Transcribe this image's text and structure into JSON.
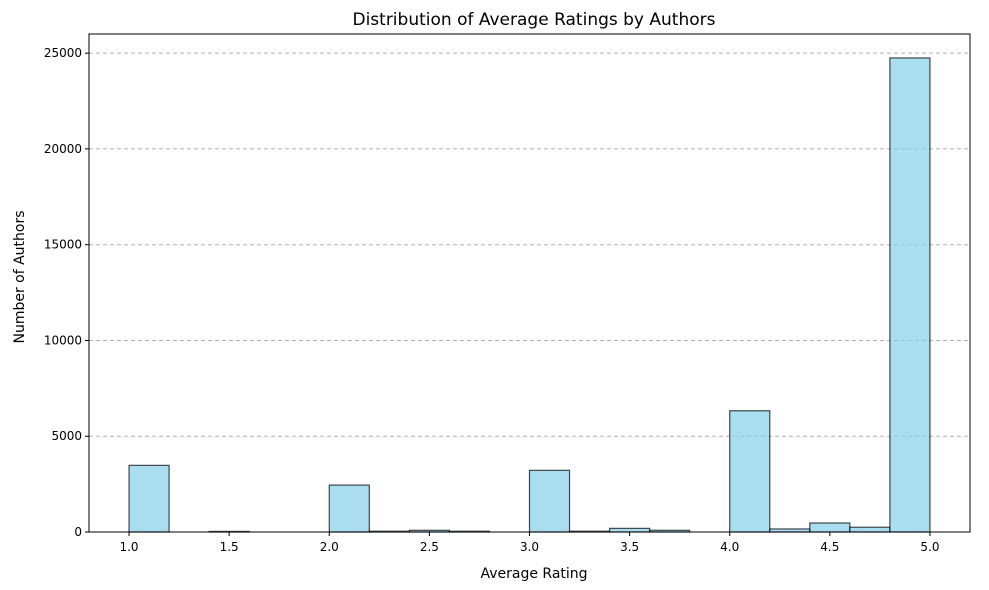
{
  "chart_data": {
    "type": "bar",
    "title": "Distribution of Average Ratings by Authors",
    "xlabel": "Average Rating",
    "ylabel": "Number of Authors",
    "xlim": [
      0.8,
      5.2
    ],
    "ylim": [
      0,
      26000
    ],
    "xticks": [
      "1.0",
      "1.5",
      "2.0",
      "2.5",
      "3.0",
      "3.5",
      "4.0",
      "4.5",
      "5.0"
    ],
    "yticks": [
      "0",
      "5000",
      "10000",
      "15000",
      "20000",
      "25000"
    ],
    "grid": "y-dashed",
    "bins": [
      {
        "start": 1.0,
        "end": 1.2,
        "count": 3480
      },
      {
        "start": 1.2,
        "end": 1.4,
        "count": 0
      },
      {
        "start": 1.4,
        "end": 1.6,
        "count": 30
      },
      {
        "start": 1.6,
        "end": 1.8,
        "count": 0
      },
      {
        "start": 1.8,
        "end": 2.0,
        "count": 0
      },
      {
        "start": 2.0,
        "end": 2.2,
        "count": 2450
      },
      {
        "start": 2.2,
        "end": 2.4,
        "count": 40
      },
      {
        "start": 2.4,
        "end": 2.6,
        "count": 90
      },
      {
        "start": 2.6,
        "end": 2.8,
        "count": 40
      },
      {
        "start": 2.8,
        "end": 3.0,
        "count": 0
      },
      {
        "start": 3.0,
        "end": 3.2,
        "count": 3220
      },
      {
        "start": 3.2,
        "end": 3.4,
        "count": 40
      },
      {
        "start": 3.4,
        "end": 3.6,
        "count": 190
      },
      {
        "start": 3.6,
        "end": 3.8,
        "count": 90
      },
      {
        "start": 3.8,
        "end": 4.0,
        "count": 0
      },
      {
        "start": 4.0,
        "end": 4.2,
        "count": 6330
      },
      {
        "start": 4.2,
        "end": 4.4,
        "count": 160
      },
      {
        "start": 4.4,
        "end": 4.6,
        "count": 470
      },
      {
        "start": 4.6,
        "end": 4.8,
        "count": 250
      },
      {
        "start": 4.8,
        "end": 5.0,
        "count": 24750
      }
    ],
    "colors": {
      "bar_fill": "#87ceeb",
      "bar_edge": "#000000",
      "grid": "#b0b0b0"
    }
  }
}
